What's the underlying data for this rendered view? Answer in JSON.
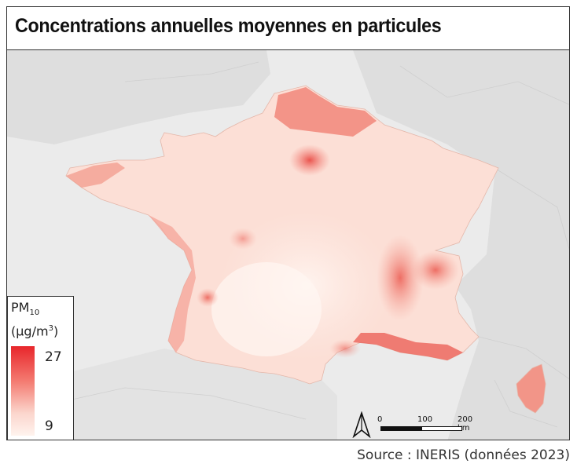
{
  "title": "Concentrations annuelles moyennes en particules",
  "legend": {
    "pollutant": "PM",
    "pollutant_sub": "10",
    "unit_prefix": "(µg/m",
    "unit_sup": "3",
    "unit_suffix": ")",
    "max_label": "27",
    "min_label": "9",
    "max_color": "#e8262b",
    "min_color": "#fff3ee"
  },
  "scale_bar": {
    "labels": [
      "0",
      "100",
      "200 km"
    ]
  },
  "north_arrow": "north-arrow-icon",
  "source": "Source : INERIS (données 2023)"
}
